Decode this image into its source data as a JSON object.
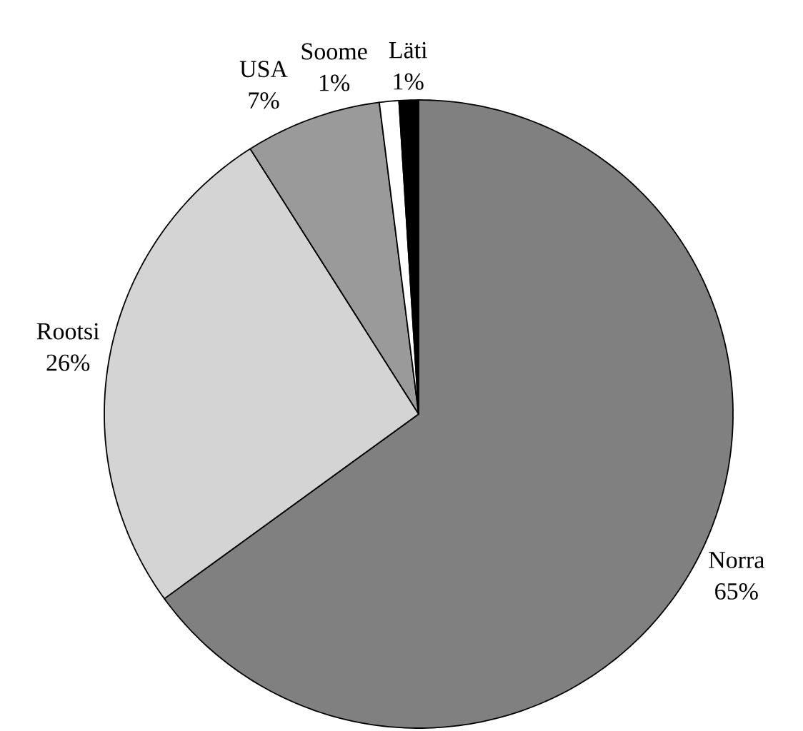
{
  "chart_data": {
    "type": "pie",
    "categories": [
      "Norra",
      "Rootsi",
      "USA",
      "Soome",
      "Läti"
    ],
    "values": [
      65,
      26,
      7,
      1,
      1
    ],
    "value_labels": [
      "65%",
      "26%",
      "7%",
      "1%",
      "1%"
    ],
    "colors": [
      "#808080",
      "#d4d4d4",
      "#9a9a9a",
      "#ffffff",
      "#000000"
    ]
  }
}
